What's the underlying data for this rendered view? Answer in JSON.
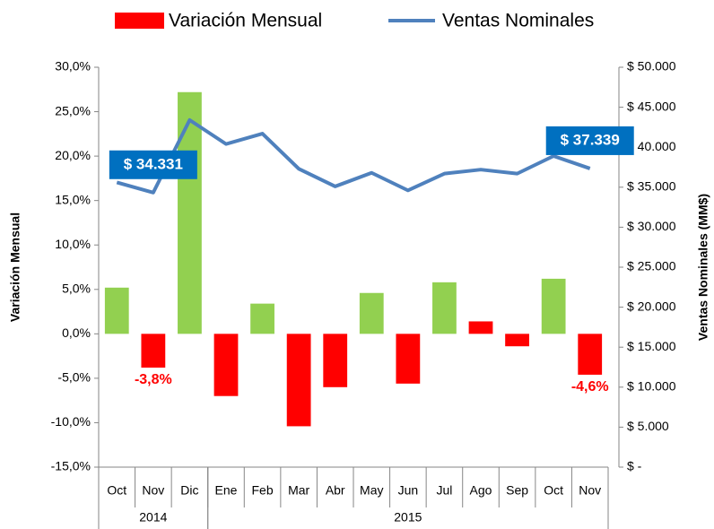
{
  "chart_data": {
    "type": "bar-line",
    "categories": [
      "Oct",
      "Nov",
      "Dic",
      "Ene",
      "Feb",
      "Mar",
      "Abr",
      "May",
      "Jun",
      "Jul",
      "Ago",
      "Sep",
      "Oct",
      "Nov"
    ],
    "groups": [
      {
        "label": "2014",
        "span": 3
      },
      {
        "label": "2015",
        "span": 11
      }
    ],
    "ylabel": "Variación Mensual",
    "y2label": "Ventas Nominales (MM$)",
    "ylim": [
      -15,
      30
    ],
    "yticks": [
      {
        "value": -15,
        "label": "-15,0%"
      },
      {
        "value": -10,
        "label": "-10,0%"
      },
      {
        "value": -5,
        "label": "-5,0%"
      },
      {
        "value": 0,
        "label": "0,0%"
      },
      {
        "value": 5,
        "label": "5,0%"
      },
      {
        "value": 10,
        "label": "10,0%"
      },
      {
        "value": 15,
        "label": "15,0%"
      },
      {
        "value": 20,
        "label": "20,0%"
      },
      {
        "value": 25,
        "label": "25,0%"
      },
      {
        "value": 30,
        "label": "30,0%"
      }
    ],
    "y2lim": [
      0,
      50000
    ],
    "y2ticks": [
      {
        "value": 0,
        "label": "$ -"
      },
      {
        "value": 5000,
        "label": "$ 5.000"
      },
      {
        "value": 10000,
        "label": "$ 10.000"
      },
      {
        "value": 15000,
        "label": "$ 15.000"
      },
      {
        "value": 20000,
        "label": "$ 20.000"
      },
      {
        "value": 25000,
        "label": "$ 25.000"
      },
      {
        "value": 30000,
        "label": "$ 30.000"
      },
      {
        "value": 35000,
        "label": "$ 35.000"
      },
      {
        "value": 40000,
        "label": "$ 40.000"
      },
      {
        "value": 45000,
        "label": "$ 45.000"
      },
      {
        "value": 50000,
        "label": "$ 50.000"
      }
    ],
    "series": [
      {
        "name": "Variación Mensual",
        "type": "bar",
        "color": "#ff0000",
        "colors": [
          "#92d050",
          "#ff0000",
          "#92d050",
          "#ff0000",
          "#92d050",
          "#ff0000",
          "#ff0000",
          "#92d050",
          "#ff0000",
          "#92d050",
          "#ff0000",
          "#ff0000",
          "#92d050",
          "#ff0000"
        ],
        "values": [
          5.2,
          -3.8,
          27.2,
          -7.0,
          3.4,
          -10.4,
          -6.0,
          4.6,
          -5.6,
          5.8,
          1.4,
          -1.4,
          6.2,
          -4.6
        ],
        "value_labels": [
          null,
          "-3,8%",
          null,
          null,
          null,
          null,
          null,
          null,
          null,
          null,
          null,
          null,
          null,
          "-4,6%"
        ]
      },
      {
        "name": "Ventas Nominales",
        "type": "line",
        "axis": "y2",
        "color": "#4f81bd",
        "label_color": "#0070c0",
        "values": [
          35600,
          34331,
          43400,
          40400,
          41700,
          37300,
          35100,
          36800,
          34600,
          36700,
          37200,
          36700,
          38900,
          37339
        ],
        "value_labels": [
          null,
          "$ 34.331",
          null,
          null,
          null,
          null,
          null,
          null,
          null,
          null,
          null,
          null,
          null,
          "$ 37.339"
        ]
      }
    ]
  }
}
